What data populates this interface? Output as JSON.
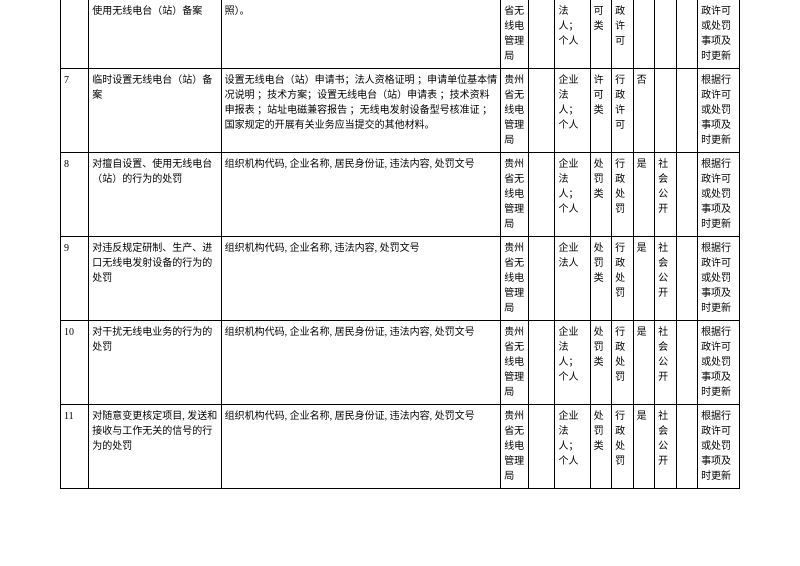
{
  "table": {
    "border_color": "#000000",
    "background_color": "#ffffff",
    "text_color": "#000000",
    "font_size": 10,
    "rows": [
      {
        "idx": "",
        "name": "使用无线电台（站）备案",
        "desc": "照）。",
        "org": "省无线电管理局",
        "empty1": "",
        "subj": "法人；个人",
        "cat": "可类",
        "type": "政许可",
        "yn": "",
        "pub": "",
        "empty2": "",
        "update": "政许可或处罚事项及时更新",
        "noTop": true
      },
      {
        "idx": "7",
        "name": "临时设置无线电台（站）备案",
        "desc": "设置无线电台（站）申请书；法人资格证明 ；申请单位基本情况说明 ；技术方案；设置无线电台（站）申请表 ；技术资料申报表 ；站址电磁兼容报告 ；无线电发射设备型号核准证 ；国家规定的开展有关业务应当提交的其他材料。",
        "org": "贵州省无线电管理局",
        "empty1": "",
        "subj": "企业法人；个人",
        "cat": "许可类",
        "type": "行政许可",
        "yn": "否",
        "pub": "",
        "empty2": "",
        "update": "根据行政许可或处罚事项及时更新"
      },
      {
        "idx": "8",
        "name": "对擅自设置、使用无线电台（站）的行为的处罚",
        "desc": "组织机构代码, 企业名称, 居民身份证, 违法内容, 处罚文号",
        "org": "贵州省无线电管理局",
        "empty1": "",
        "subj": "企业法人；个人",
        "cat": "处罚类",
        "type": "行政处罚",
        "yn": "是",
        "pub": "社会公开",
        "empty2": "",
        "update": "根据行政许可或处罚事项及时更新"
      },
      {
        "idx": "9",
        "name": "对违反规定研制、生产、进口无线电发射设备的行为的处罚",
        "desc": "组织机构代码, 企业名称, 违法内容, 处罚文号",
        "org": "贵州省无线电管理局",
        "empty1": "",
        "subj": "企业法人",
        "cat": "处罚类",
        "type": "行政处罚",
        "yn": "是",
        "pub": "社会公开",
        "empty2": "",
        "update": "根据行政许可或处罚事项及时更新"
      },
      {
        "idx": "10",
        "name": "对干扰无线电业务的行为的处罚",
        "desc": "组织机构代码, 企业名称, 居民身份证, 违法内容, 处罚文号",
        "org": "贵州省无线电管理局",
        "empty1": "",
        "subj": "企业法人；个人",
        "cat": "处罚类",
        "type": "行政处罚",
        "yn": "是",
        "pub": "社会公开",
        "empty2": "",
        "update": "根据行政许可或处罚事项及时更新"
      },
      {
        "idx": "11",
        "name": "对随意变更核定项目, 发送和接收与工作无关的信号的行为的处罚",
        "desc": "组织机构代码, 企业名称, 居民身份证, 违法内容, 处罚文号",
        "org": "贵州省无线电管理局",
        "empty1": "",
        "subj": "企业法人；个人",
        "cat": "处罚类",
        "type": "行政处罚",
        "yn": "是",
        "pub": "社会公开",
        "empty2": "",
        "update": "根据行政许可或处罚事项及时更新"
      }
    ]
  }
}
